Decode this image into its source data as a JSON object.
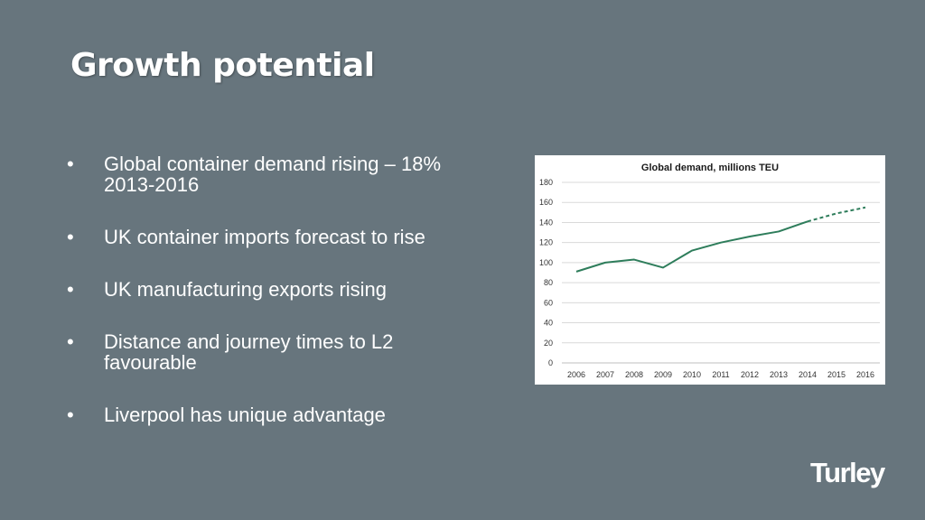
{
  "slide": {
    "title": "Growth potential",
    "bullet_marker": "•",
    "bullets": [
      "Global container demand rising – 18% 2013-2016",
      "UK container imports forecast to rise",
      "UK manufacturing exports rising",
      "Distance and journey times to L2 favourable",
      "Liverpool has unique advantage"
    ],
    "logo_text": "Turley"
  },
  "colors": {
    "background": "#67757d",
    "text": "#ffffff",
    "line": "#2e7d5b"
  },
  "chart_data": {
    "type": "line",
    "title": "Global demand, millions TEU",
    "categories": [
      "2006",
      "2007",
      "2008",
      "2009",
      "2010",
      "2011",
      "2012",
      "2013",
      "2014",
      "2015",
      "2016"
    ],
    "series": [
      {
        "values": [
          91,
          100,
          103,
          95,
          112,
          120,
          126,
          131,
          141,
          149,
          155
        ],
        "style": "solid 2006-2014, dashed forecast 2014-2016"
      }
    ],
    "yticks": [
      0,
      20,
      40,
      60,
      80,
      100,
      120,
      140,
      160,
      180
    ],
    "ylim": [
      0,
      180
    ],
    "grid": true,
    "legend": "none"
  }
}
